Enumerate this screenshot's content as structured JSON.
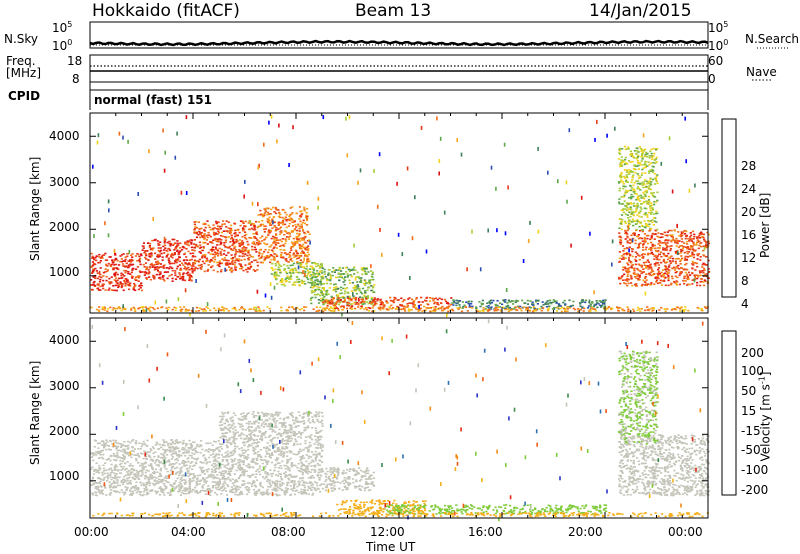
{
  "header": {
    "station": "Hokkaido (fitACF)",
    "beam": "Beam 13",
    "date": "14/Jan/2015"
  },
  "top_strip": {
    "nsky_label": "N.Sky",
    "nsearch_label": "N.Search",
    "nsky_ticks": [
      "10^5",
      "10^0"
    ],
    "nsearch_ticks": [
      "10^5",
      "10^0"
    ],
    "freq_label_1": "Freq.",
    "freq_label_2": "[MHz]",
    "freq_ticks": [
      "18",
      "8"
    ],
    "nave_label": "Nave",
    "nave_ticks": [
      "60",
      "0"
    ],
    "cpid_label": "CPID",
    "cpid_value": "normal (fast) 151"
  },
  "chart_data": [
    {
      "type": "heatmap",
      "title": "",
      "xlabel": "Time UT",
      "ylabel": "Slant Range [km]",
      "x_ticks": [
        "00:00",
        "04:00",
        "08:00",
        "12:00",
        "16:00",
        "20:00",
        "00:00"
      ],
      "x_range_hours": [
        0,
        24
      ],
      "y_ticks": [
        "1000",
        "2000",
        "3000",
        "4000"
      ],
      "ylim": [
        200,
        4500
      ],
      "colorbar": {
        "label": "Power [dB]",
        "ticks": [
          "4",
          "8",
          "12",
          "16",
          "20",
          "24",
          "28"
        ],
        "range": [
          0,
          30
        ],
        "colors": [
          "#0000ff",
          "#2b4fb0",
          "#3c7f5a",
          "#5fa84a",
          "#a6cc3a",
          "#f2d21c",
          "#f6a31a",
          "#f26b1b",
          "#e83a18",
          "#dd1111"
        ]
      },
      "echo_regions": [
        {
          "t_start": 0.0,
          "t_end": 2.0,
          "r_min": 700,
          "r_max": 1500,
          "value": 26
        },
        {
          "t_start": 2.0,
          "t_end": 4.0,
          "r_min": 900,
          "r_max": 1800,
          "value": 26
        },
        {
          "t_start": 4.0,
          "t_end": 6.5,
          "r_min": 1100,
          "r_max": 2200,
          "value": 24
        },
        {
          "t_start": 6.5,
          "t_end": 8.5,
          "r_min": 1300,
          "r_max": 2500,
          "value": 22
        },
        {
          "t_start": 7.0,
          "t_end": 9.0,
          "r_min": 800,
          "r_max": 1300,
          "value": 14
        },
        {
          "t_start": 8.5,
          "t_end": 11.0,
          "r_min": 400,
          "r_max": 1200,
          "value": 12
        },
        {
          "t_start": 9.0,
          "t_end": 14.0,
          "r_min": 300,
          "r_max": 550,
          "value": 24
        },
        {
          "t_start": 14.0,
          "t_end": 20.0,
          "r_min": 300,
          "r_max": 500,
          "value": 8
        },
        {
          "t_start": 20.5,
          "t_end": 24.0,
          "r_min": 800,
          "r_max": 2000,
          "value": 24
        },
        {
          "t_start": 20.5,
          "t_end": 22.0,
          "r_min": 2000,
          "r_max": 3800,
          "value": 14
        },
        {
          "t_start": 0.0,
          "t_end": 24.0,
          "r_min": 250,
          "r_max": 350,
          "value": 20
        }
      ]
    },
    {
      "type": "heatmap",
      "title": "",
      "xlabel": "Time UT",
      "ylabel": "Slant Range [km]",
      "x_ticks": [
        "00:00",
        "04:00",
        "08:00",
        "12:00",
        "16:00",
        "20:00",
        "00:00"
      ],
      "x_range_hours": [
        0,
        24
      ],
      "y_ticks": [
        "1000",
        "2000",
        "3000",
        "4000"
      ],
      "ylim": [
        200,
        4500
      ],
      "colorbar": {
        "label": "Velocity [m s^-1]",
        "ticks": [
          "200",
          "100",
          "50",
          "15",
          "-15",
          "-50",
          "-100",
          "-200"
        ],
        "range": [
          -250,
          250
        ],
        "colors": [
          "#2a33c8",
          "#2f6fb3",
          "#3a8a4c",
          "#7fcc3a",
          "#c4c4b8",
          "#f4b01c",
          "#f58a18",
          "#ee5a17",
          "#e32b12"
        ]
      },
      "echo_regions": [
        {
          "t_start": 0.0,
          "t_end": 9.0,
          "r_min": 700,
          "r_max": 1900,
          "value": 0
        },
        {
          "t_start": 5.0,
          "t_end": 9.0,
          "r_min": 1900,
          "r_max": 2500,
          "value": 0
        },
        {
          "t_start": 9.0,
          "t_end": 11.0,
          "r_min": 800,
          "r_max": 1300,
          "value": 0
        },
        {
          "t_start": 9.5,
          "t_end": 13.0,
          "r_min": 300,
          "r_max": 600,
          "value": -40
        },
        {
          "t_start": 11.5,
          "t_end": 20.0,
          "r_min": 300,
          "r_max": 500,
          "value": 40
        },
        {
          "t_start": 20.5,
          "t_end": 24.0,
          "r_min": 700,
          "r_max": 2000,
          "value": 0
        },
        {
          "t_start": 20.5,
          "t_end": 22.0,
          "r_min": 1800,
          "r_max": 3800,
          "value": 30
        },
        {
          "t_start": 0.0,
          "t_end": 24.0,
          "r_min": 250,
          "r_max": 330,
          "value": -60
        }
      ]
    }
  ]
}
